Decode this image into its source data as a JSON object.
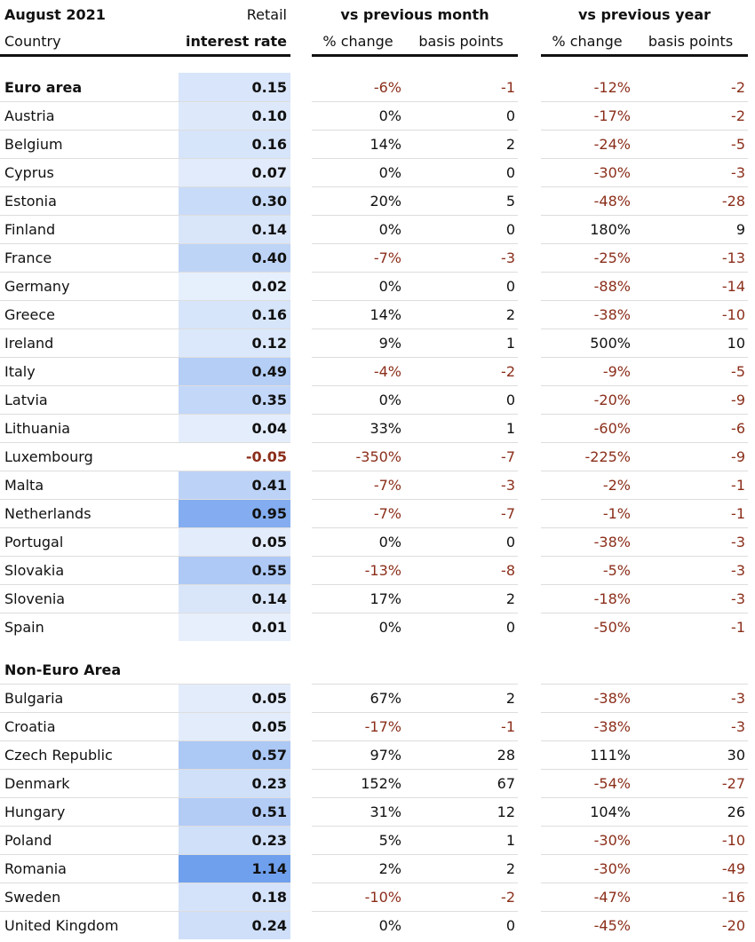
{
  "header": {
    "date_label": "August 2021",
    "retail_label": "Retail",
    "vs_month_label": "vs previous month",
    "vs_year_label": "vs previous year",
    "country_label": "Country",
    "rate_label": "interest rate",
    "pct_change_label": "% change",
    "bp_label": "basis points"
  },
  "colors": {
    "negative": "#8b2e1a",
    "heat_base": "#e8f0fc",
    "heat_max": "#6fa0ee"
  },
  "groups": [
    {
      "name": "Euro area",
      "summary": {
        "rate": "0.15",
        "month_pct": "-6%",
        "month_bp": "-1",
        "year_pct": "-12%",
        "year_bp": "-2"
      },
      "rows": [
        {
          "country": "Austria",
          "rate": "0.10",
          "month_pct": "0%",
          "month_bp": "0",
          "year_pct": "-17%",
          "year_bp": "-2"
        },
        {
          "country": "Belgium",
          "rate": "0.16",
          "month_pct": "14%",
          "month_bp": "2",
          "year_pct": "-24%",
          "year_bp": "-5"
        },
        {
          "country": "Cyprus",
          "rate": "0.07",
          "month_pct": "0%",
          "month_bp": "0",
          "year_pct": "-30%",
          "year_bp": "-3"
        },
        {
          "country": "Estonia",
          "rate": "0.30",
          "month_pct": "20%",
          "month_bp": "5",
          "year_pct": "-48%",
          "year_bp": "-28"
        },
        {
          "country": "Finland",
          "rate": "0.14",
          "month_pct": "0%",
          "month_bp": "0",
          "year_pct": "180%",
          "year_bp": "9"
        },
        {
          "country": "France",
          "rate": "0.40",
          "month_pct": "-7%",
          "month_bp": "-3",
          "year_pct": "-25%",
          "year_bp": "-13"
        },
        {
          "country": "Germany",
          "rate": "0.02",
          "month_pct": "0%",
          "month_bp": "0",
          "year_pct": "-88%",
          "year_bp": "-14"
        },
        {
          "country": "Greece",
          "rate": "0.16",
          "month_pct": "14%",
          "month_bp": "2",
          "year_pct": "-38%",
          "year_bp": "-10"
        },
        {
          "country": "Ireland",
          "rate": "0.12",
          "month_pct": "9%",
          "month_bp": "1",
          "year_pct": "500%",
          "year_bp": "10"
        },
        {
          "country": "Italy",
          "rate": "0.49",
          "month_pct": "-4%",
          "month_bp": "-2",
          "year_pct": "-9%",
          "year_bp": "-5"
        },
        {
          "country": "Latvia",
          "rate": "0.35",
          "month_pct": "0%",
          "month_bp": "0",
          "year_pct": "-20%",
          "year_bp": "-9"
        },
        {
          "country": "Lithuania",
          "rate": "0.04",
          "month_pct": "33%",
          "month_bp": "1",
          "year_pct": "-60%",
          "year_bp": "-6"
        },
        {
          "country": "Luxembourg",
          "rate": "-0.05",
          "month_pct": "-350%",
          "month_bp": "-7",
          "year_pct": "-225%",
          "year_bp": "-9"
        },
        {
          "country": "Malta",
          "rate": "0.41",
          "month_pct": "-7%",
          "month_bp": "-3",
          "year_pct": "-2%",
          "year_bp": "-1"
        },
        {
          "country": "Netherlands",
          "rate": "0.95",
          "month_pct": "-7%",
          "month_bp": "-7",
          "year_pct": "-1%",
          "year_bp": "-1"
        },
        {
          "country": "Portugal",
          "rate": "0.05",
          "month_pct": "0%",
          "month_bp": "0",
          "year_pct": "-38%",
          "year_bp": "-3"
        },
        {
          "country": "Slovakia",
          "rate": "0.55",
          "month_pct": "-13%",
          "month_bp": "-8",
          "year_pct": "-5%",
          "year_bp": "-3"
        },
        {
          "country": "Slovenia",
          "rate": "0.14",
          "month_pct": "17%",
          "month_bp": "2",
          "year_pct": "-18%",
          "year_bp": "-3"
        },
        {
          "country": "Spain",
          "rate": "0.01",
          "month_pct": "0%",
          "month_bp": "0",
          "year_pct": "-50%",
          "year_bp": "-1"
        }
      ]
    },
    {
      "name": "Non-Euro Area",
      "rows": [
        {
          "country": "Bulgaria",
          "rate": "0.05",
          "month_pct": "67%",
          "month_bp": "2",
          "year_pct": "-38%",
          "year_bp": "-3"
        },
        {
          "country": "Croatia",
          "rate": "0.05",
          "month_pct": "-17%",
          "month_bp": "-1",
          "year_pct": "-38%",
          "year_bp": "-3"
        },
        {
          "country": "Czech Republic",
          "rate": "0.57",
          "month_pct": "97%",
          "month_bp": "28",
          "year_pct": "111%",
          "year_bp": "30"
        },
        {
          "country": "Denmark",
          "rate": "0.23",
          "month_pct": "152%",
          "month_bp": "67",
          "year_pct": "-54%",
          "year_bp": "-27"
        },
        {
          "country": "Hungary",
          "rate": "0.51",
          "month_pct": "31%",
          "month_bp": "12",
          "year_pct": "104%",
          "year_bp": "26"
        },
        {
          "country": "Poland",
          "rate": "0.23",
          "month_pct": "5%",
          "month_bp": "1",
          "year_pct": "-30%",
          "year_bp": "-10"
        },
        {
          "country": "Romania",
          "rate": "1.14",
          "month_pct": "2%",
          "month_bp": "2",
          "year_pct": "-30%",
          "year_bp": "-49"
        },
        {
          "country": "Sweden",
          "rate": "0.18",
          "month_pct": "-10%",
          "month_bp": "-2",
          "year_pct": "-47%",
          "year_bp": "-16"
        },
        {
          "country": "United Kingdom",
          "rate": "0.24",
          "month_pct": "0%",
          "month_bp": "0",
          "year_pct": "-45%",
          "year_bp": "-20"
        }
      ]
    }
  ]
}
